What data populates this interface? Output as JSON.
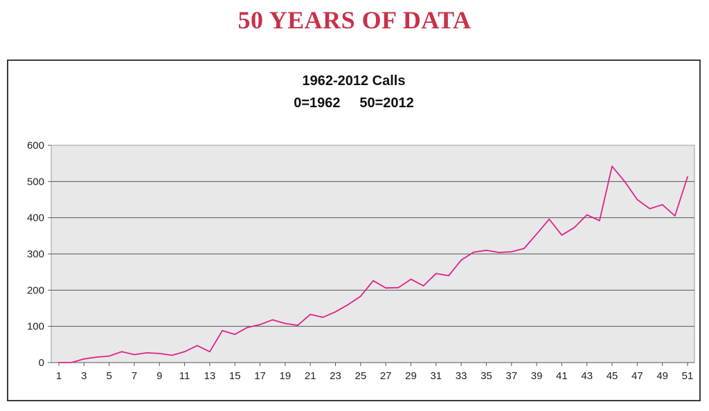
{
  "page": {
    "heading": "50 YEARS OF DATA"
  },
  "chart_data": {
    "type": "line",
    "title": "1962-2012 Calls",
    "subtitle": "0=1962     50=2012",
    "xlabel": "",
    "ylabel": "",
    "ylim": [
      0,
      600
    ],
    "yticks": [
      0,
      100,
      200,
      300,
      400,
      500,
      600
    ],
    "xlim": [
      1,
      51
    ],
    "xticks": [
      1,
      3,
      5,
      7,
      9,
      11,
      13,
      15,
      17,
      19,
      21,
      23,
      25,
      27,
      29,
      31,
      33,
      35,
      37,
      39,
      41,
      43,
      45,
      47,
      49,
      51
    ],
    "grid": "horizontal",
    "legend": "none",
    "colors": {
      "line": "#e0218a",
      "plot_bg": "#e8e8e8",
      "heading": "#c8324a"
    },
    "series": [
      {
        "x": [
          1,
          2,
          3,
          4,
          5,
          6,
          7,
          8,
          9,
          10,
          11,
          12,
          13,
          14,
          15,
          16,
          17,
          18,
          19,
          20,
          21,
          22,
          23,
          24,
          25,
          26,
          27,
          28,
          29,
          30,
          31,
          32,
          33,
          34,
          35,
          36,
          37,
          38,
          39,
          40,
          41,
          42,
          43,
          44,
          45,
          46,
          47,
          48,
          49,
          50,
          51
        ],
        "values": [
          0,
          0,
          10,
          15,
          18,
          30,
          22,
          27,
          25,
          20,
          30,
          47,
          30,
          88,
          78,
          97,
          105,
          118,
          108,
          103,
          133,
          125,
          140,
          160,
          183,
          226,
          206,
          207,
          230,
          212,
          246,
          240,
          283,
          305,
          310,
          304,
          306,
          315,
          355,
          396,
          352,
          373,
          408,
          392,
          542,
          500,
          450,
          425,
          436,
          405,
          513
        ]
      }
    ]
  }
}
